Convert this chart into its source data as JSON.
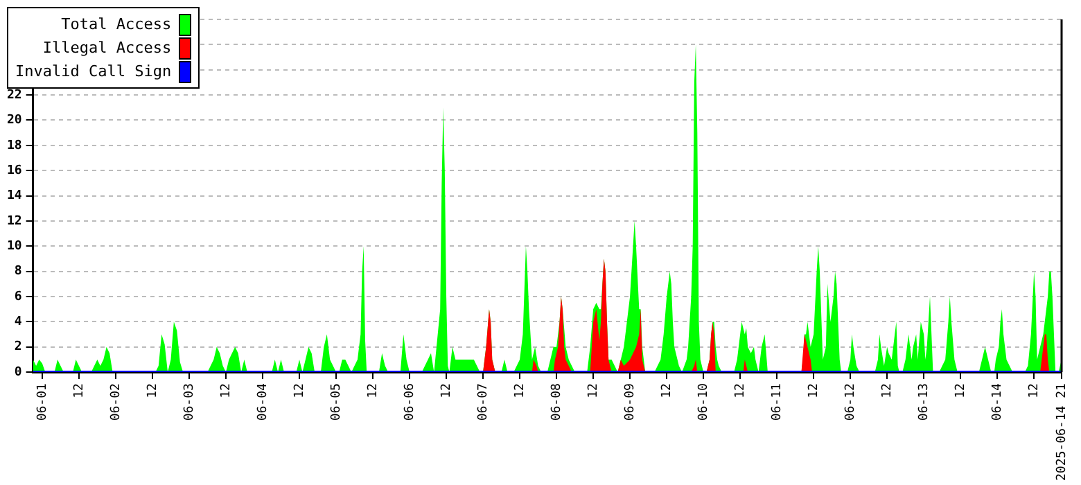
{
  "chart_data": {
    "type": "area",
    "xlim": [
      "2025-05-31T21:00",
      "2025-06-14T21:00"
    ],
    "ylim": [
      0,
      28
    ],
    "xticks": [
      {
        "value": "2025-06-01T00:00",
        "label": "06-01"
      },
      {
        "value": "2025-06-01T12:00",
        "label": "12"
      },
      {
        "value": "2025-06-02T00:00",
        "label": "06-02"
      },
      {
        "value": "2025-06-02T12:00",
        "label": "12"
      },
      {
        "value": "2025-06-03T00:00",
        "label": "06-03"
      },
      {
        "value": "2025-06-03T12:00",
        "label": "12"
      },
      {
        "value": "2025-06-04T00:00",
        "label": "06-04"
      },
      {
        "value": "2025-06-04T12:00",
        "label": "12"
      },
      {
        "value": "2025-06-05T00:00",
        "label": "06-05"
      },
      {
        "value": "2025-06-05T12:00",
        "label": "12"
      },
      {
        "value": "2025-06-06T00:00",
        "label": "06-06"
      },
      {
        "value": "2025-06-06T12:00",
        "label": "12"
      },
      {
        "value": "2025-06-07T00:00",
        "label": "06-07"
      },
      {
        "value": "2025-06-07T12:00",
        "label": "12"
      },
      {
        "value": "2025-06-08T00:00",
        "label": "06-08"
      },
      {
        "value": "2025-06-08T12:00",
        "label": "12"
      },
      {
        "value": "2025-06-09T00:00",
        "label": "06-09"
      },
      {
        "value": "2025-06-09T12:00",
        "label": "12"
      },
      {
        "value": "2025-06-10T00:00",
        "label": "06-10"
      },
      {
        "value": "2025-06-10T12:00",
        "label": "12"
      },
      {
        "value": "2025-06-11T00:00",
        "label": "06-11"
      },
      {
        "value": "2025-06-11T12:00",
        "label": "12"
      },
      {
        "value": "2025-06-12T00:00",
        "label": "06-12"
      },
      {
        "value": "2025-06-12T12:00",
        "label": "12"
      },
      {
        "value": "2025-06-13T00:00",
        "label": "06-13"
      },
      {
        "value": "2025-06-13T12:00",
        "label": "12"
      },
      {
        "value": "2025-06-14T00:00",
        "label": "06-14"
      },
      {
        "value": "2025-06-14T12:00",
        "label": "12"
      },
      {
        "value": "2025-06-14T21:00",
        "label": "2025-06-14 21"
      }
    ],
    "yticks": [
      0,
      2,
      4,
      6,
      8,
      10,
      12,
      14,
      16,
      18,
      20,
      22,
      {
        "value": 24,
        "label": null
      },
      {
        "value": 26,
        "label": null
      },
      {
        "value": 28,
        "label": null
      }
    ],
    "grid": "y",
    "legend": "top left",
    "series": [
      {
        "name": "Total Access",
        "color": "#00ff00",
        "x": [
          "2025-05-31T21:00",
          "2025-05-31T22:00",
          "2025-05-31T23:00",
          "2025-06-01T00:00",
          "2025-06-01T01:00",
          "2025-06-01T04:00",
          "2025-06-01T05:00",
          "2025-06-01T07:00",
          "2025-06-01T10:00",
          "2025-06-01T11:00",
          "2025-06-01T13:00",
          "2025-06-01T16:00",
          "2025-06-01T17:00",
          "2025-06-01T18:00",
          "2025-06-01T19:00",
          "2025-06-01T20:00",
          "2025-06-01T21:00",
          "2025-06-01T22:00",
          "2025-06-01T23:00",
          "2025-06-02T13:00",
          "2025-06-02T14:00",
          "2025-06-02T15:00",
          "2025-06-02T16:00",
          "2025-06-02T17:00",
          "2025-06-02T18:00",
          "2025-06-02T19:00",
          "2025-06-02T20:00",
          "2025-06-02T21:00",
          "2025-06-02T22:00",
          "2025-06-03T06:00",
          "2025-06-03T07:00",
          "2025-06-03T08:00",
          "2025-06-03T09:00",
          "2025-06-03T10:00",
          "2025-06-03T11:00",
          "2025-06-03T12:00",
          "2025-06-03T13:00",
          "2025-06-03T14:00",
          "2025-06-03T15:00",
          "2025-06-03T16:00",
          "2025-06-03T17:00",
          "2025-06-03T18:00",
          "2025-06-03T19:00",
          "2025-06-04T03:00",
          "2025-06-04T04:00",
          "2025-06-04T05:00",
          "2025-06-04T06:00",
          "2025-06-04T07:00",
          "2025-06-04T11:00",
          "2025-06-04T12:00",
          "2025-06-04T13:00",
          "2025-06-04T14:00",
          "2025-06-04T15:00",
          "2025-06-04T16:00",
          "2025-06-04T17:00",
          "2025-06-04T19:00",
          "2025-06-04T20:00",
          "2025-06-04T21:00",
          "2025-06-04T22:00",
          "2025-06-04T23:00",
          "2025-06-05T00:00",
          "2025-06-05T01:00",
          "2025-06-05T02:00",
          "2025-06-05T03:00",
          "2025-06-05T04:00",
          "2025-06-05T05:00",
          "2025-06-05T06:00",
          "2025-06-05T07:00",
          "2025-06-05T08:00",
          "2025-06-05T08:30",
          "2025-06-05T09:00",
          "2025-06-05T09:30",
          "2025-06-05T10:00",
          "2025-06-05T14:00",
          "2025-06-05T15:00",
          "2025-06-05T16:00",
          "2025-06-05T17:00",
          "2025-06-05T21:00",
          "2025-06-05T22:00",
          "2025-06-05T23:00",
          "2025-06-06T00:00",
          "2025-06-06T04:00",
          "2025-06-06T05:00",
          "2025-06-06T06:00",
          "2025-06-06T07:00",
          "2025-06-06T08:00",
          "2025-06-06T10:00",
          "2025-06-06T10:30",
          "2025-06-06T11:00",
          "2025-06-06T11:30",
          "2025-06-06T12:00",
          "2025-06-06T12:30",
          "2025-06-06T13:00",
          "2025-06-06T14:00",
          "2025-06-06T15:00",
          "2025-06-06T21:00",
          "2025-06-06T22:00",
          "2025-06-06T23:00",
          "2025-06-07T00:00",
          "2025-06-07T01:00",
          "2025-06-07T02:00",
          "2025-06-07T02:30",
          "2025-06-07T03:00",
          "2025-06-07T04:00",
          "2025-06-07T06:00",
          "2025-06-07T07:00",
          "2025-06-07T08:00",
          "2025-06-07T10:00",
          "2025-06-07T11:00",
          "2025-06-07T12:00",
          "2025-06-07T13:00",
          "2025-06-07T14:00",
          "2025-06-07T14:30",
          "2025-06-07T15:00",
          "2025-06-07T16:00",
          "2025-06-07T17:00",
          "2025-06-07T18:00",
          "2025-06-07T19:00",
          "2025-06-07T21:00",
          "2025-06-07T22:00",
          "2025-06-07T23:00",
          "2025-06-08T00:00",
          "2025-06-08T01:00",
          "2025-06-08T01:30",
          "2025-06-08T02:00",
          "2025-06-08T03:00",
          "2025-06-08T04:00",
          "2025-06-08T05:00",
          "2025-06-08T06:00",
          "2025-06-08T10:00",
          "2025-06-08T11:00",
          "2025-06-08T12:00",
          "2025-06-08T13:00",
          "2025-06-08T14:00",
          "2025-06-08T14:30",
          "2025-06-08T15:00",
          "2025-06-08T15:30",
          "2025-06-08T16:00",
          "2025-06-08T16:30",
          "2025-06-08T17:00",
          "2025-06-08T18:00",
          "2025-06-08T19:00",
          "2025-06-08T20:00",
          "2025-06-08T21:00",
          "2025-06-08T22:00",
          "2025-06-08T23:00",
          "2025-06-09T00:00",
          "2025-06-09T01:00",
          "2025-06-09T01:30",
          "2025-06-09T02:00",
          "2025-06-09T03:00",
          "2025-06-09T03:30",
          "2025-06-09T04:00",
          "2025-06-09T05:00",
          "2025-06-09T08:00",
          "2025-06-09T09:00",
          "2025-06-09T10:00",
          "2025-06-09T11:00",
          "2025-06-09T12:00",
          "2025-06-09T13:00",
          "2025-06-09T13:30",
          "2025-06-09T14:00",
          "2025-06-09T14:30",
          "2025-06-09T15:00",
          "2025-06-09T16:00",
          "2025-06-09T17:00",
          "2025-06-09T18:30",
          "2025-06-09T19:00",
          "2025-06-09T20:00",
          "2025-06-09T20:30",
          "2025-06-09T21:00",
          "2025-06-09T21:30",
          "2025-06-09T22:00",
          "2025-06-09T22:30",
          "2025-06-09T23:00",
          "2025-06-10T00:00",
          "2025-06-10T01:00",
          "2025-06-10T02:00",
          "2025-06-10T02:30",
          "2025-06-10T03:00",
          "2025-06-10T03:30",
          "2025-06-10T04:00",
          "2025-06-10T04:30",
          "2025-06-10T05:00",
          "2025-06-10T06:00",
          "2025-06-10T10:00",
          "2025-06-10T10:30",
          "2025-06-10T11:00",
          "2025-06-10T12:00",
          "2025-06-10T12:30",
          "2025-06-10T13:30",
          "2025-06-10T14:00",
          "2025-06-10T14:30",
          "2025-06-10T15:30",
          "2025-06-10T16:30",
          "2025-06-10T17:00",
          "2025-06-10T17:30",
          "2025-06-10T18:00",
          "2025-06-10T19:00",
          "2025-06-10T20:00",
          "2025-06-10T21:00",
          "2025-06-11T08:00",
          "2025-06-11T08:30",
          "2025-06-11T09:00",
          "2025-06-11T09:30",
          "2025-06-11T10:00",
          "2025-06-11T11:00",
          "2025-06-11T12:00",
          "2025-06-11T13:00",
          "2025-06-11T13:30",
          "2025-06-11T14:00",
          "2025-06-11T15:00",
          "2025-06-11T16:00",
          "2025-06-11T16:30",
          "2025-06-11T17:30",
          "2025-06-11T18:30",
          "2025-06-11T19:00",
          "2025-06-11T19:30",
          "2025-06-11T20:00",
          "2025-06-11T20:30",
          "2025-06-11T21:00",
          "2025-06-11T23:00",
          "2025-06-12T00:00",
          "2025-06-12T00:30",
          "2025-06-12T01:00",
          "2025-06-12T02:00",
          "2025-06-12T03:00",
          "2025-06-12T08:00",
          "2025-06-12T09:00",
          "2025-06-12T09:30",
          "2025-06-12T10:00",
          "2025-06-12T11:00",
          "2025-06-12T12:00",
          "2025-06-12T12:30",
          "2025-06-12T13:30",
          "2025-06-12T14:30",
          "2025-06-12T15:00",
          "2025-06-12T15:30",
          "2025-06-12T16:00",
          "2025-06-12T17:00",
          "2025-06-12T18:00",
          "2025-06-12T19:00",
          "2025-06-12T19:30",
          "2025-06-12T20:00",
          "2025-06-12T20:30",
          "2025-06-12T21:30",
          "2025-06-12T22:00",
          "2025-06-12T22:30",
          "2025-06-12T23:00",
          "2025-06-13T00:00",
          "2025-06-13T00:30",
          "2025-06-13T01:00",
          "2025-06-13T01:30",
          "2025-06-13T02:00",
          "2025-06-13T02:30",
          "2025-06-13T03:00",
          "2025-06-13T05:00",
          "2025-06-13T06:00",
          "2025-06-13T07:00",
          "2025-06-13T08:00",
          "2025-06-13T08:30",
          "2025-06-13T09:00",
          "2025-06-13T10:00",
          "2025-06-13T11:00",
          "2025-06-13T18:00",
          "2025-06-13T19:00",
          "2025-06-13T20:00",
          "2025-06-13T21:00",
          "2025-06-13T22:00",
          "2025-06-13T23:00",
          "2025-06-13T23:30",
          "2025-06-14T00:30",
          "2025-06-14T01:00",
          "2025-06-14T01:30",
          "2025-06-14T02:00",
          "2025-06-14T03:00",
          "2025-06-14T04:00",
          "2025-06-14T05:00",
          "2025-06-14T09:00",
          "2025-06-14T10:00",
          "2025-06-14T11:00",
          "2025-06-14T12:00",
          "2025-06-14T12:30",
          "2025-06-14T13:00",
          "2025-06-14T14:00",
          "2025-06-14T15:00",
          "2025-06-14T16:00",
          "2025-06-14T16:30",
          "2025-06-14T17:00",
          "2025-06-14T17:30",
          "2025-06-14T18:00",
          "2025-06-14T18:30",
          "2025-06-14T19:00",
          "2025-06-14T20:00",
          "2025-06-14T20:30",
          "2025-06-14T21:00"
        ],
        "values": [
          1,
          0.5,
          1,
          0.7,
          0,
          0,
          1,
          0,
          0,
          1,
          0,
          0,
          0.5,
          1,
          0.5,
          1,
          2,
          1.5,
          0,
          0,
          0.5,
          3,
          2.2,
          0,
          1,
          4,
          3.3,
          0.8,
          0,
          0,
          0.5,
          1,
          2,
          1.5,
          0.5,
          0,
          1,
          1.5,
          2,
          1.5,
          0,
          1,
          0,
          0,
          1,
          0,
          1,
          0,
          0,
          1,
          0,
          1,
          2,
          1.5,
          0,
          0,
          2,
          3,
          1,
          0.5,
          0,
          0,
          1,
          1,
          0.5,
          0,
          0.5,
          1,
          3,
          8,
          10,
          2.5,
          0,
          0,
          1.5,
          0.5,
          0,
          0,
          3,
          1,
          0,
          0,
          0.5,
          1,
          1.5,
          0,
          5,
          15,
          21,
          16,
          6,
          0.5,
          0,
          2,
          1,
          1,
          0.5,
          0,
          0,
          2,
          5,
          4,
          1,
          0,
          0,
          1,
          0,
          0,
          0.5,
          1,
          3,
          10,
          8,
          5,
          1,
          2,
          0.5,
          0,
          0,
          1,
          2,
          2,
          4,
          6,
          5,
          2,
          1,
          0.5,
          0,
          0,
          2,
          5,
          5.5,
          5,
          5,
          7,
          9,
          8,
          4,
          1,
          1,
          0.5,
          0,
          1,
          2,
          4,
          6,
          10,
          12,
          10,
          5,
          5,
          2,
          0,
          0,
          0.5,
          1,
          3,
          6,
          8,
          7,
          4,
          2,
          1.5,
          0.5,
          0,
          1,
          2,
          6,
          10,
          23,
          26,
          19,
          4,
          1,
          0,
          0,
          1,
          3,
          4,
          4,
          2,
          1,
          0.5,
          0,
          0,
          0.5,
          1,
          3,
          4,
          3,
          3.5,
          2,
          1.5,
          2,
          1,
          0.5,
          0,
          2,
          3,
          0,
          0,
          1,
          3,
          3,
          4,
          2,
          3,
          8,
          10,
          8,
          1,
          2,
          7,
          4,
          6,
          8,
          7,
          4,
          1,
          0,
          0,
          1,
          3,
          2,
          0.5,
          0,
          0,
          1,
          3,
          2,
          0.5,
          2,
          1.5,
          1,
          3,
          4,
          0.5,
          0,
          0,
          1,
          3,
          2,
          1,
          2,
          3,
          1,
          2.5,
          4,
          3,
          1,
          2,
          4,
          6,
          3,
          0,
          0,
          0.5,
          1,
          4,
          6,
          4,
          1,
          0,
          0,
          1,
          2,
          1,
          0,
          0,
          1,
          2,
          4,
          5,
          3,
          1,
          0.5,
          0,
          0,
          0.5,
          3,
          8,
          6,
          1,
          2,
          3,
          5,
          6,
          8,
          8,
          6,
          3,
          0,
          0,
          0.5,
          1
        ]
      },
      {
        "name": "Illegal Access",
        "color": "#ff0000",
        "x": [
          "2025-05-31T21:00",
          "2025-06-07T00:00",
          "2025-06-07T01:00",
          "2025-06-07T02:00",
          "2025-06-07T02:30",
          "2025-06-07T03:00",
          "2025-06-07T04:00",
          "2025-06-07T16:00",
          "2025-06-07T16:30",
          "2025-06-07T17:30",
          "2025-06-07T18:00",
          "2025-06-07T23:00",
          "2025-06-07T23:30",
          "2025-06-08T00:30",
          "2025-06-08T01:00",
          "2025-06-08T01:30",
          "2025-06-08T02:00",
          "2025-06-08T02:30",
          "2025-06-08T03:00",
          "2025-06-08T04:00",
          "2025-06-08T05:00",
          "2025-06-08T11:00",
          "2025-06-08T12:00",
          "2025-06-08T13:00",
          "2025-06-08T14:00",
          "2025-06-08T14:30",
          "2025-06-08T15:00",
          "2025-06-08T15:30",
          "2025-06-08T16:00",
          "2025-06-08T16:30",
          "2025-06-08T17:00",
          "2025-06-08T18:00",
          "2025-06-08T20:00",
          "2025-06-08T21:00",
          "2025-06-08T22:00",
          "2025-06-09T00:00",
          "2025-06-09T02:00",
          "2025-06-09T03:00",
          "2025-06-09T03:30",
          "2025-06-09T04:00",
          "2025-06-09T05:00",
          "2025-06-09T20:00",
          "2025-06-09T21:00",
          "2025-06-09T21:30",
          "2025-06-09T22:00",
          "2025-06-10T01:00",
          "2025-06-10T02:00",
          "2025-06-10T02:30",
          "2025-06-10T03:00",
          "2025-06-10T03:30",
          "2025-06-10T04:00",
          "2025-06-10T13:00",
          "2025-06-10T13:30",
          "2025-06-10T14:00",
          "2025-06-10T14:30",
          "2025-06-11T08:00",
          "2025-06-11T09:00",
          "2025-06-11T10:00",
          "2025-06-11T11:00",
          "2025-06-11T11:30",
          "2025-06-14T14:00",
          "2025-06-14T14:30",
          "2025-06-14T15:00",
          "2025-06-14T15:30",
          "2025-06-14T16:00",
          "2025-06-14T16:30",
          "2025-06-14T17:00",
          "2025-06-14T21:00"
        ],
        "values": [
          0,
          0,
          2,
          5,
          4,
          1,
          0,
          0,
          1,
          0.5,
          0,
          0,
          1,
          2,
          4,
          6,
          5,
          2,
          1,
          0.5,
          0,
          0,
          4,
          5,
          2.5,
          4,
          7,
          9,
          8,
          4,
          1,
          0,
          0,
          1,
          0.5,
          1,
          2,
          3,
          5,
          1,
          0,
          0,
          0.5,
          1,
          0,
          0,
          1,
          3,
          4,
          3,
          0,
          0,
          1,
          0.5,
          0,
          0,
          3,
          2,
          1,
          0,
          0,
          1,
          2,
          3,
          3,
          1,
          0,
          0
        ]
      },
      {
        "name": "Invalid Call Sign",
        "color": "#0000ff",
        "type": "line",
        "x": [
          "2025-05-31T21:00",
          "2025-06-14T21:00"
        ],
        "values": [
          0,
          0
        ]
      }
    ]
  }
}
